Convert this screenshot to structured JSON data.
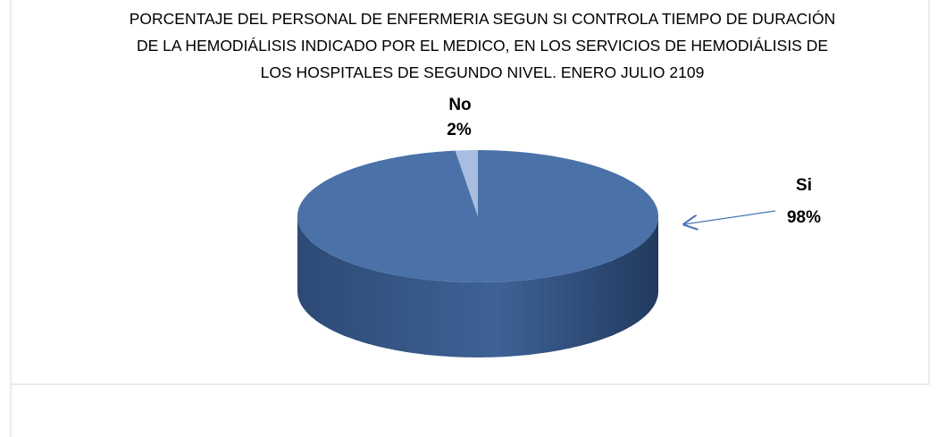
{
  "chart_data": {
    "type": "pie",
    "title": "PORCENTAJE DEL PERSONAL DE ENFERMERIA SEGUN SI CONTROLA TIEMPO DE DURACIÓN DE LA HEMODIÁLISIS INDICADO POR EL MEDICO, EN LOS SERVICIOS DE HEMODIÁLISIS DE LOS HOSPITALES DE SEGUNDO NIVEL. ENERO JULIO 2109",
    "categories": [
      "Si",
      "No"
    ],
    "values": [
      98,
      2
    ],
    "value_labels": [
      "98%",
      "2%"
    ],
    "colors": [
      "#4a72a8",
      "#a9bde0"
    ]
  }
}
